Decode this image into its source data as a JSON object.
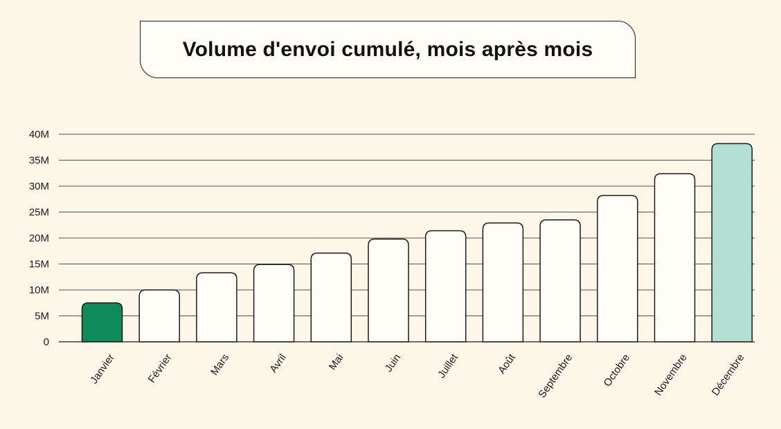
{
  "title": "Volume d'envoi cumulé, mois après mois",
  "colors": {
    "background": "#fdf7ea",
    "bar_default": "#fffdf6",
    "bar_first": "#0f8a5a",
    "bar_last": "#b4e0d3",
    "outline": "#1a1a1a"
  },
  "chart_data": {
    "type": "bar",
    "title": "Volume d'envoi cumulé, mois après mois",
    "xlabel": "",
    "ylabel": "",
    "ylim": [
      0,
      40
    ],
    "y_ticks": [
      0,
      5,
      10,
      15,
      20,
      25,
      30,
      35,
      40
    ],
    "y_tick_labels": [
      "0",
      "5M",
      "10M",
      "15M",
      "20M",
      "25M",
      "30M",
      "35M",
      "40M"
    ],
    "grid": true,
    "categories": [
      "Janvier",
      "Février",
      "Mars",
      "Avril",
      "Mai",
      "Juin",
      "Juillet",
      "Août",
      "Septembre",
      "Octobre",
      "Novembre",
      "Décembre"
    ],
    "values": [
      7.5,
      10,
      13.3,
      14.9,
      17.1,
      19.8,
      21.4,
      22.9,
      23.5,
      28.2,
      32.4,
      38.2
    ]
  }
}
